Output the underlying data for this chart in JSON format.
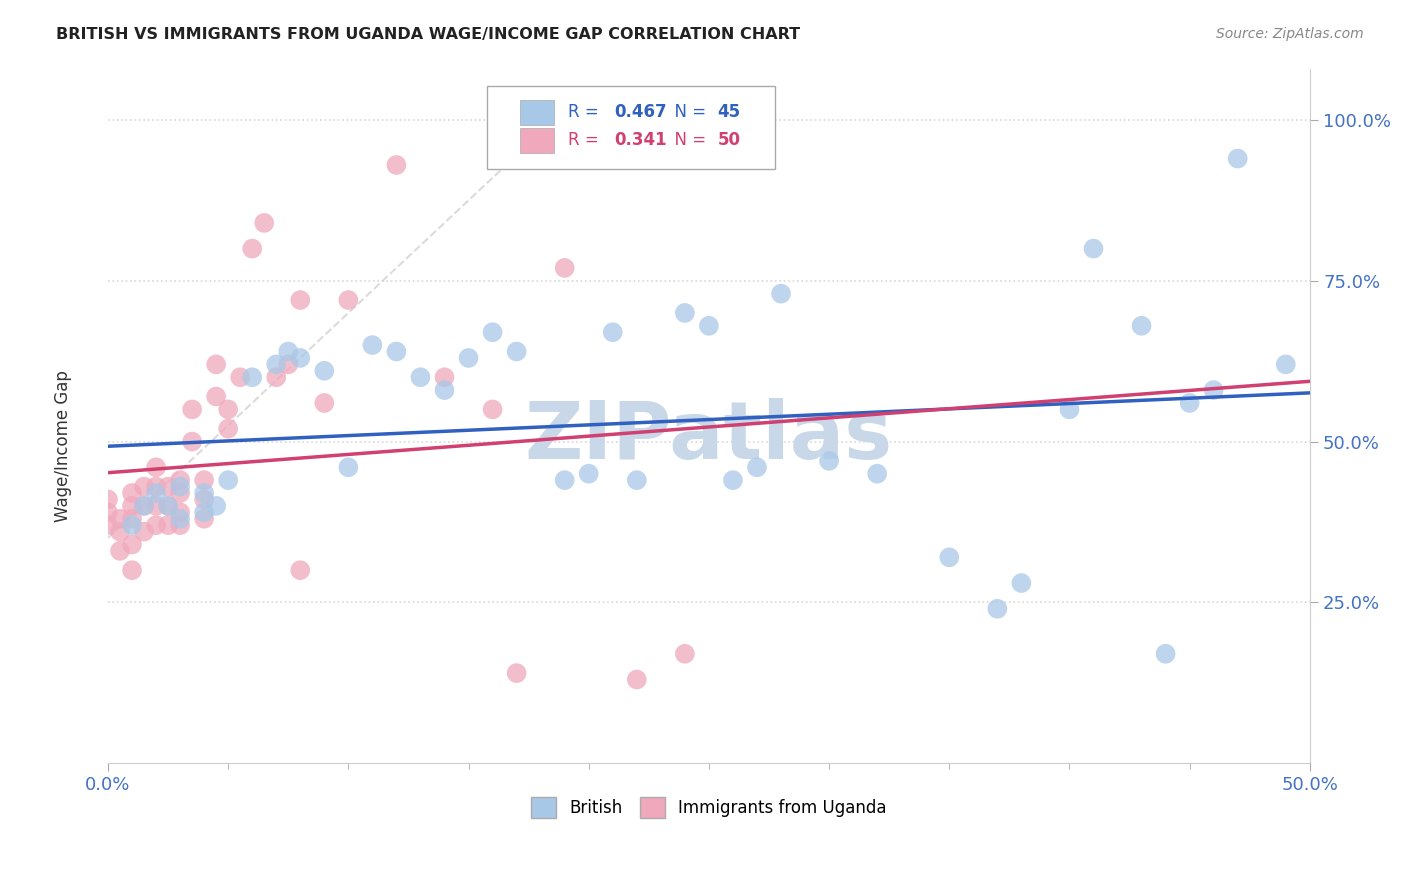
{
  "title": "BRITISH VS IMMIGRANTS FROM UGANDA WAGE/INCOME GAP CORRELATION CHART",
  "source": "Source: ZipAtlas.com",
  "ylabel": "Wage/Income Gap",
  "xlim": [
    0.0,
    0.5
  ],
  "ylim": [
    0.0,
    1.08
  ],
  "british_R": 0.467,
  "british_N": 45,
  "uganda_R": 0.341,
  "uganda_N": 50,
  "british_color": "#a8c8e8",
  "uganda_color": "#f0a8bc",
  "british_line_color": "#3060c0",
  "uganda_line_color": "#d04070",
  "watermark_color": "#c8d8e8",
  "background_color": "#ffffff",
  "grid_color": "#d8d8d8",
  "british_scatter_x": [
    0.01,
    0.015,
    0.02,
    0.025,
    0.03,
    0.03,
    0.04,
    0.04,
    0.045,
    0.05,
    0.06,
    0.07,
    0.075,
    0.08,
    0.09,
    0.1,
    0.11,
    0.12,
    0.13,
    0.14,
    0.15,
    0.16,
    0.17,
    0.19,
    0.2,
    0.21,
    0.22,
    0.24,
    0.25,
    0.26,
    0.27,
    0.28,
    0.3,
    0.32,
    0.35,
    0.37,
    0.38,
    0.4,
    0.41,
    0.43,
    0.44,
    0.45,
    0.46,
    0.47,
    0.49
  ],
  "british_scatter_y": [
    0.37,
    0.4,
    0.42,
    0.4,
    0.43,
    0.38,
    0.42,
    0.39,
    0.4,
    0.44,
    0.6,
    0.62,
    0.64,
    0.63,
    0.61,
    0.46,
    0.65,
    0.64,
    0.6,
    0.58,
    0.63,
    0.67,
    0.64,
    0.44,
    0.45,
    0.67,
    0.44,
    0.7,
    0.68,
    0.44,
    0.46,
    0.73,
    0.47,
    0.45,
    0.32,
    0.24,
    0.28,
    0.55,
    0.8,
    0.68,
    0.17,
    0.56,
    0.58,
    0.94,
    0.62
  ],
  "uganda_scatter_x": [
    0.0,
    0.0,
    0.0,
    0.005,
    0.005,
    0.005,
    0.01,
    0.01,
    0.01,
    0.01,
    0.01,
    0.015,
    0.015,
    0.015,
    0.02,
    0.02,
    0.02,
    0.02,
    0.025,
    0.025,
    0.025,
    0.03,
    0.03,
    0.03,
    0.03,
    0.035,
    0.035,
    0.04,
    0.04,
    0.04,
    0.045,
    0.045,
    0.05,
    0.05,
    0.055,
    0.06,
    0.065,
    0.07,
    0.075,
    0.08,
    0.08,
    0.09,
    0.1,
    0.12,
    0.14,
    0.16,
    0.17,
    0.19,
    0.22,
    0.24
  ],
  "uganda_scatter_y": [
    0.37,
    0.39,
    0.41,
    0.33,
    0.36,
    0.38,
    0.3,
    0.34,
    0.38,
    0.4,
    0.42,
    0.36,
    0.4,
    0.43,
    0.37,
    0.4,
    0.43,
    0.46,
    0.37,
    0.4,
    0.43,
    0.37,
    0.39,
    0.42,
    0.44,
    0.5,
    0.55,
    0.38,
    0.41,
    0.44,
    0.57,
    0.62,
    0.52,
    0.55,
    0.6,
    0.8,
    0.84,
    0.6,
    0.62,
    0.3,
    0.72,
    0.56,
    0.72,
    0.93,
    0.6,
    0.55,
    0.14,
    0.77,
    0.13,
    0.17
  ]
}
